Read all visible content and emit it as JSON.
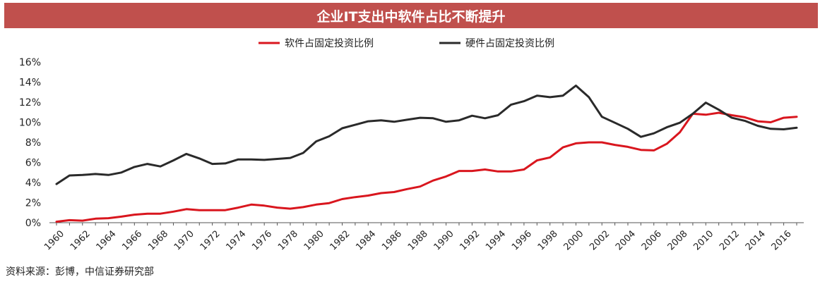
{
  "title": "企业IT支出中软件占比不断提升",
  "source": "资料来源：彭博，中信证券研究部",
  "chart_data": {
    "type": "line",
    "title": "企业IT支出中软件占比不断提升",
    "xlabel": "",
    "ylabel": "",
    "x": [
      1960,
      1961,
      1962,
      1963,
      1964,
      1965,
      1966,
      1967,
      1968,
      1969,
      1970,
      1971,
      1972,
      1973,
      1974,
      1975,
      1976,
      1977,
      1978,
      1979,
      1980,
      1981,
      1982,
      1983,
      1984,
      1985,
      1986,
      1987,
      1988,
      1989,
      1990,
      1991,
      1992,
      1993,
      1994,
      1995,
      1996,
      1997,
      1998,
      1999,
      2000,
      2001,
      2002,
      2003,
      2004,
      2005,
      2006,
      2007,
      2008,
      2009,
      2010,
      2011,
      2012,
      2013,
      2014,
      2015,
      2016,
      2017
    ],
    "x_tick_labels": [
      "1960",
      "1962",
      "1964",
      "1966",
      "1968",
      "1970",
      "1972",
      "1974",
      "1976",
      "1978",
      "1980",
      "1982",
      "1984",
      "1986",
      "1988",
      "1990",
      "1992",
      "1994",
      "1996",
      "1998",
      "2000",
      "2002",
      "2004",
      "2006",
      "2008",
      "2010",
      "2012",
      "2014",
      "2016"
    ],
    "y_tick_labels": [
      "0%",
      "2%",
      "4%",
      "6%",
      "8%",
      "10%",
      "12%",
      "14%",
      "16%"
    ],
    "ylim": [
      0,
      16
    ],
    "grid": false,
    "legend_position": "top-center",
    "series": [
      {
        "name": "软件占固定投资比例",
        "color": "#d9161e",
        "values": [
          0.1,
          0.25,
          0.2,
          0.4,
          0.45,
          0.6,
          0.8,
          0.9,
          0.9,
          1.1,
          1.35,
          1.25,
          1.25,
          1.25,
          1.5,
          1.8,
          1.7,
          1.5,
          1.4,
          1.55,
          1.8,
          1.95,
          2.35,
          2.55,
          2.7,
          2.95,
          3.05,
          3.35,
          3.6,
          4.2,
          4.6,
          5.15,
          5.15,
          5.3,
          5.1,
          5.1,
          5.3,
          6.2,
          6.5,
          7.5,
          7.9,
          8.0,
          8.0,
          7.75,
          7.55,
          7.25,
          7.2,
          7.85,
          9.0,
          10.85,
          10.75,
          10.95,
          10.7,
          10.5,
          10.1,
          10.0,
          10.45,
          10.55
        ]
      },
      {
        "name": "硬件占固定投资比例",
        "color": "#2a2a2a",
        "values": [
          3.85,
          4.7,
          4.75,
          4.85,
          4.75,
          5.0,
          5.55,
          5.85,
          5.6,
          6.2,
          6.85,
          6.4,
          5.85,
          5.9,
          6.3,
          6.3,
          6.25,
          6.35,
          6.45,
          6.95,
          8.1,
          8.6,
          9.4,
          9.75,
          10.1,
          10.2,
          10.05,
          10.25,
          10.45,
          10.4,
          10.05,
          10.2,
          10.65,
          10.4,
          10.7,
          11.75,
          12.1,
          12.65,
          12.5,
          12.65,
          13.65,
          12.5,
          10.55,
          9.95,
          9.35,
          8.55,
          8.9,
          9.5,
          9.95,
          10.85,
          11.95,
          11.25,
          10.45,
          10.15,
          9.65,
          9.35,
          9.3,
          9.45
        ]
      }
    ]
  }
}
